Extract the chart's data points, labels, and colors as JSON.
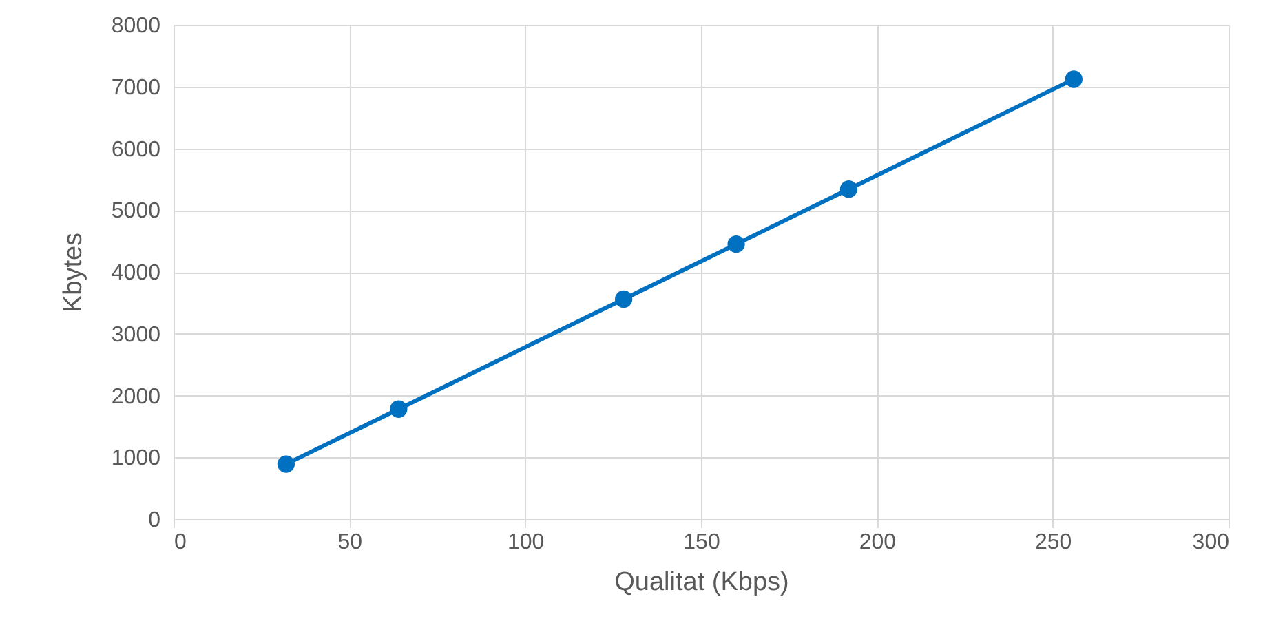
{
  "chart_data": {
    "type": "line",
    "xlabel": "Qualitat (Kbps)",
    "ylabel": "Kbytes",
    "x": [
      32,
      64,
      128,
      160,
      192,
      256
    ],
    "series": [
      {
        "color": "#0070c0",
        "values": [
          890,
          1780,
          3560,
          4450,
          5340,
          7120
        ]
      }
    ],
    "xlim": [
      0,
      300
    ],
    "xticks": [
      0,
      50,
      100,
      150,
      200,
      250,
      300
    ],
    "ylim": [
      0,
      8000
    ],
    "yticks": [
      0,
      1000,
      2000,
      3000,
      4000,
      5000,
      6000,
      7000,
      8000
    ],
    "grid": true,
    "marker": "circle",
    "line_style": "solid"
  }
}
